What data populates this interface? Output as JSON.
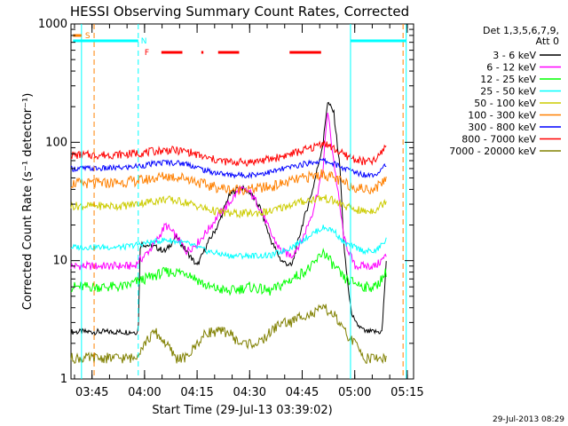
{
  "chart_data": {
    "type": "line",
    "title": "HESSI Observing Summary Count Rates, Corrected",
    "xlabel": "Start Time (29-Jul-13 03:39:02)",
    "ylabel": "Corrected Count Rate (s⁻¹ detector⁻¹)",
    "footer": "29-Jul-2013 08:29",
    "yscale": "log",
    "ylim": [
      1,
      1000
    ],
    "xlim": [
      3.65,
      5.28
    ],
    "ytick_values": [
      1,
      10,
      100,
      1000
    ],
    "ytick_labels": [
      "1",
      "10",
      "100",
      "1000"
    ],
    "xtick_values": [
      3.75,
      4.0,
      4.25,
      4.5,
      4.75,
      5.0,
      5.25
    ],
    "xtick_labels": [
      "03:45",
      "04:00",
      "04:15",
      "04:30",
      "04:45",
      "05:00",
      "05:15"
    ],
    "legend": {
      "header": [
        "Det 1,3,5,6,7,9,",
        "Att 0"
      ],
      "entries": [
        {
          "label": "3 - 6 keV",
          "color": "#000000"
        },
        {
          "label": "6 - 12 keV",
          "color": "#ff00ff"
        },
        {
          "label": "12 - 25 keV",
          "color": "#00ff00"
        },
        {
          "label": "25 - 50 keV",
          "color": "#00ffff"
        },
        {
          "label": "50 - 100 keV",
          "color": "#cccc00"
        },
        {
          "label": "100 - 300 keV",
          "color": "#ff8000"
        },
        {
          "label": "300 - 800 keV",
          "color": "#0000ff"
        },
        {
          "label": "800 - 7000 keV",
          "color": "#ff0000"
        },
        {
          "label": "7000 - 20000 keV",
          "color": "#808000"
        }
      ]
    },
    "series": [
      {
        "name": "3 - 6 keV",
        "color": "#000000",
        "x": [
          3.65,
          3.8,
          3.85,
          3.9,
          3.95,
          3.97,
          3.98,
          4.05,
          4.1,
          4.15,
          4.2,
          4.25,
          4.3,
          4.35,
          4.4,
          4.45,
          4.5,
          4.55,
          4.6,
          4.65,
          4.7,
          4.75,
          4.8,
          4.85,
          4.87,
          4.9,
          4.93,
          4.95,
          4.98,
          5.0,
          5.05,
          5.1,
          5.13,
          5.15
        ],
        "y": [
          2.5,
          2.5,
          2.5,
          2.5,
          2.5,
          2.5,
          14,
          13,
          12,
          16,
          12,
          9,
          14,
          20,
          35,
          42,
          38,
          28,
          15,
          10,
          9,
          20,
          40,
          100,
          220,
          180,
          60,
          12,
          4,
          3,
          2.5,
          2.5,
          2.5,
          10
        ]
      },
      {
        "name": "6 - 12 keV",
        "color": "#ff00ff",
        "x": [
          3.65,
          3.8,
          3.9,
          3.95,
          4.0,
          4.05,
          4.1,
          4.15,
          4.2,
          4.25,
          4.3,
          4.35,
          4.4,
          4.45,
          4.5,
          4.55,
          4.6,
          4.65,
          4.7,
          4.75,
          4.8,
          4.85,
          4.87,
          4.9,
          4.95,
          5.0,
          5.05,
          5.1,
          5.15
        ],
        "y": [
          9,
          9,
          9,
          9,
          11,
          14,
          20,
          16,
          12,
          14,
          18,
          24,
          30,
          40,
          38,
          28,
          17,
          12,
          11,
          15,
          26,
          60,
          190,
          70,
          15,
          9,
          9,
          9,
          11
        ]
      },
      {
        "name": "12 - 25 keV",
        "color": "#00ff00",
        "x": [
          3.65,
          3.8,
          3.9,
          4.0,
          4.1,
          4.2,
          4.3,
          4.4,
          4.5,
          4.6,
          4.7,
          4.8,
          4.85,
          4.9,
          4.95,
          5.0,
          5.05,
          5.1,
          5.15
        ],
        "y": [
          6,
          6,
          6,
          7,
          8,
          8,
          6,
          5.5,
          6,
          5.5,
          7,
          9,
          12,
          9,
          7,
          6.5,
          6,
          6,
          8
        ]
      },
      {
        "name": "25 - 50 keV",
        "color": "#00ffff",
        "x": [
          3.65,
          3.8,
          3.9,
          4.0,
          4.1,
          4.2,
          4.3,
          4.4,
          4.5,
          4.6,
          4.7,
          4.8,
          4.85,
          4.9,
          4.95,
          5.0,
          5.05,
          5.1,
          5.15
        ],
        "y": [
          13,
          13,
          13,
          14,
          15,
          14,
          12,
          11,
          11,
          11,
          13,
          17,
          19,
          18,
          14,
          13,
          12,
          12,
          15
        ]
      },
      {
        "name": "50 - 100 keV",
        "color": "#cccc00",
        "x": [
          3.65,
          3.8,
          3.9,
          4.0,
          4.1,
          4.2,
          4.3,
          4.4,
          4.5,
          4.6,
          4.7,
          4.8,
          4.85,
          4.9,
          4.95,
          5.0,
          5.05,
          5.1,
          5.15
        ],
        "y": [
          29,
          29,
          29,
          31,
          33,
          31,
          27,
          25,
          25,
          26,
          30,
          33,
          34,
          32,
          29,
          27,
          26,
          27,
          32
        ]
      },
      {
        "name": "100 - 300 keV",
        "color": "#ff8000",
        "x": [
          3.65,
          3.8,
          3.9,
          4.0,
          4.1,
          4.2,
          4.3,
          4.4,
          4.5,
          4.6,
          4.7,
          4.8,
          4.85,
          4.9,
          4.95,
          5.0,
          5.05,
          5.1,
          5.15
        ],
        "y": [
          45,
          45,
          46,
          48,
          52,
          50,
          43,
          40,
          40,
          42,
          47,
          52,
          54,
          50,
          45,
          42,
          40,
          41,
          50
        ]
      },
      {
        "name": "300 - 800 keV",
        "color": "#0000ff",
        "x": [
          3.65,
          3.8,
          3.9,
          4.0,
          4.1,
          4.2,
          4.3,
          4.4,
          4.5,
          4.6,
          4.7,
          4.8,
          4.85,
          4.9,
          4.95,
          5.0,
          5.05,
          5.1,
          5.15
        ],
        "y": [
          60,
          60,
          61,
          64,
          68,
          66,
          57,
          53,
          53,
          56,
          62,
          68,
          70,
          66,
          60,
          56,
          53,
          54,
          66
        ]
      },
      {
        "name": "800 - 7000 keV",
        "color": "#ff0000",
        "x": [
          3.65,
          3.8,
          3.9,
          4.0,
          4.1,
          4.2,
          4.3,
          4.4,
          4.5,
          4.6,
          4.7,
          4.8,
          4.85,
          4.9,
          4.95,
          5.0,
          5.05,
          5.1,
          5.15
        ],
        "y": [
          78,
          78,
          79,
          82,
          86,
          84,
          73,
          68,
          68,
          72,
          80,
          90,
          100,
          88,
          78,
          72,
          68,
          70,
          95
        ]
      },
      {
        "name": "7000 - 20000 keV",
        "color": "#808000",
        "x": [
          3.65,
          3.8,
          3.9,
          3.95,
          4.0,
          4.05,
          4.1,
          4.15,
          4.2,
          4.25,
          4.3,
          4.35,
          4.4,
          4.45,
          4.5,
          4.55,
          4.6,
          4.65,
          4.7,
          4.75,
          4.8,
          4.85,
          4.9,
          4.95,
          5.0,
          5.05,
          5.1,
          5.15
        ],
        "y": [
          1.5,
          1.5,
          1.5,
          1.5,
          2,
          2.5,
          2,
          1.5,
          1.5,
          2,
          2.5,
          2.5,
          2.5,
          2,
          2,
          2,
          2.5,
          3,
          3,
          3.5,
          3.5,
          4,
          3.5,
          2.5,
          2,
          1.5,
          1.5,
          1.5
        ]
      }
    ],
    "vertical_markers": [
      {
        "x": 3.7,
        "color": "#00ffff",
        "style": "solid"
      },
      {
        "x": 3.76,
        "color": "#ff8000",
        "style": "dashed"
      },
      {
        "x": 3.97,
        "color": "#00ffff",
        "style": "dashed"
      },
      {
        "x": 4.98,
        "color": "#00ffff",
        "style": "solid"
      },
      {
        "x": 5.23,
        "color": "#ff8000",
        "style": "dashed"
      },
      {
        "x": 5.245,
        "color": "#00ffff",
        "style": "solid"
      }
    ],
    "status_bars": [
      {
        "label": "S",
        "color": "#ff8000",
        "segments": [
          [
            3.66,
            3.7
          ]
        ],
        "row": 0
      },
      {
        "label": "N",
        "color": "#00ffff",
        "segments": [
          [
            3.66,
            3.97
          ],
          [
            4.98,
            5.245
          ]
        ],
        "row": 1
      },
      {
        "label": "F",
        "color": "#ff0000",
        "segments": [
          [
            4.08,
            4.18
          ],
          [
            4.27,
            4.28
          ],
          [
            4.35,
            4.45
          ],
          [
            4.69,
            4.84
          ]
        ],
        "row": 2
      }
    ]
  }
}
